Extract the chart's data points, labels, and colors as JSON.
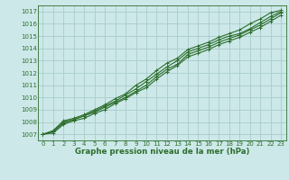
{
  "title": "Graphe pression niveau de la mer (hPa)",
  "bg_color": "#cce8e8",
  "grid_color": "#aacccc",
  "line_color": "#2d6e2d",
  "xlim": [
    -0.5,
    23.5
  ],
  "ylim": [
    1006.5,
    1017.5
  ],
  "xticks": [
    0,
    1,
    2,
    3,
    4,
    5,
    6,
    7,
    8,
    9,
    10,
    11,
    12,
    13,
    14,
    15,
    16,
    17,
    18,
    19,
    20,
    21,
    22,
    23
  ],
  "yticks": [
    1007,
    1008,
    1009,
    1010,
    1011,
    1012,
    1013,
    1014,
    1015,
    1016,
    1017
  ],
  "series": [
    [
      1007.0,
      1007.3,
      1008.1,
      1008.3,
      1008.6,
      1009.0,
      1009.4,
      1009.9,
      1010.3,
      1011.0,
      1011.5,
      1012.2,
      1012.8,
      1013.2,
      1013.9,
      1014.2,
      1014.5,
      1014.9,
      1015.2,
      1015.5,
      1016.0,
      1016.4,
      1016.9,
      1017.1
    ],
    [
      1007.0,
      1007.2,
      1008.0,
      1008.2,
      1008.5,
      1008.9,
      1009.3,
      1009.7,
      1010.2,
      1010.7,
      1011.3,
      1011.9,
      1012.5,
      1013.0,
      1013.7,
      1014.0,
      1014.3,
      1014.7,
      1015.0,
      1015.2,
      1015.6,
      1016.1,
      1016.6,
      1017.0
    ],
    [
      1007.0,
      1007.2,
      1007.9,
      1008.2,
      1008.5,
      1008.8,
      1009.2,
      1009.6,
      1010.0,
      1010.5,
      1011.0,
      1011.7,
      1012.3,
      1012.7,
      1013.5,
      1013.8,
      1014.1,
      1014.5,
      1014.8,
      1015.1,
      1015.5,
      1015.9,
      1016.4,
      1016.9
    ],
    [
      1007.0,
      1007.1,
      1007.8,
      1008.1,
      1008.3,
      1008.7,
      1009.0,
      1009.5,
      1009.9,
      1010.4,
      1010.8,
      1011.5,
      1012.1,
      1012.6,
      1013.3,
      1013.6,
      1013.9,
      1014.3,
      1014.6,
      1014.9,
      1015.3,
      1015.7,
      1016.2,
      1016.7
    ]
  ],
  "tick_fontsize": 5.0,
  "label_fontsize": 6.2,
  "linewidth": 0.8,
  "markersize": 2.8
}
